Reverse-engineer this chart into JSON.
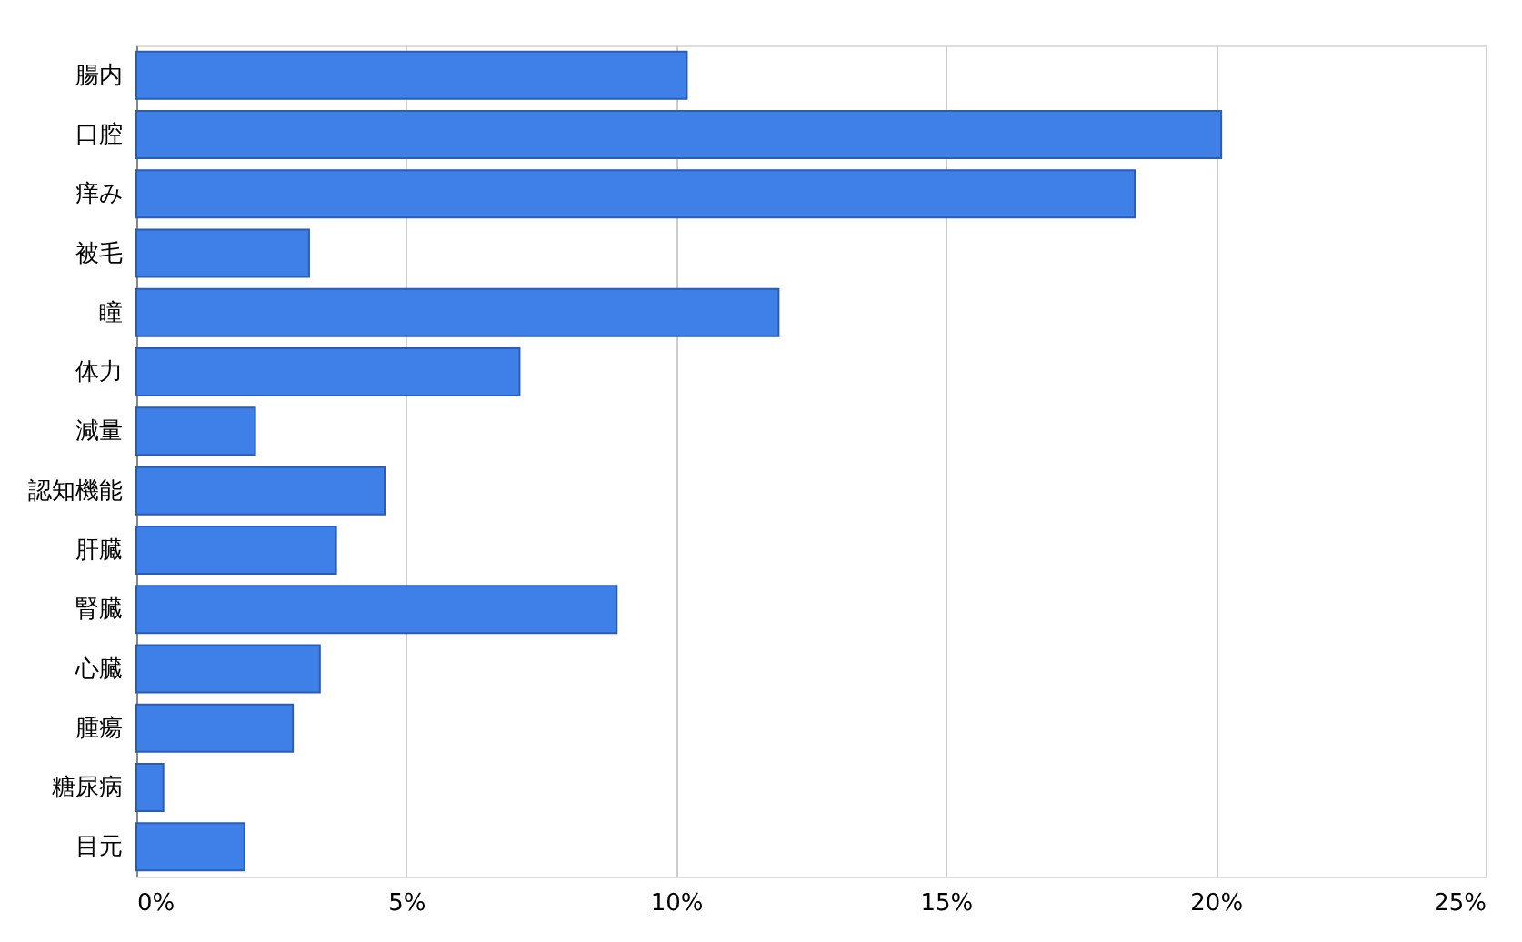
{
  "chart_data": {
    "type": "bar",
    "orientation": "horizontal",
    "categories": [
      "腸内",
      "口腔",
      "痒み",
      "被毛",
      "瞳",
      "体力",
      "減量",
      "認知機能",
      "肝臓",
      "腎臓",
      "心臓",
      "腫瘍",
      "糖尿病",
      "目元"
    ],
    "values": [
      10.2,
      20.1,
      18.5,
      3.2,
      11.9,
      7.1,
      2.2,
      4.6,
      3.7,
      8.9,
      3.4,
      2.9,
      0.5,
      2.0
    ],
    "color": "#3f7fe8",
    "xlim": [
      0,
      25
    ],
    "xticks": [
      {
        "value": 0,
        "label": "0%"
      },
      {
        "value": 5,
        "label": "5%"
      },
      {
        "value": 10,
        "label": "10%"
      },
      {
        "value": 15,
        "label": "15%"
      },
      {
        "value": 20,
        "label": "20%"
      },
      {
        "value": 25,
        "label": "25%"
      }
    ],
    "grid": "x"
  }
}
